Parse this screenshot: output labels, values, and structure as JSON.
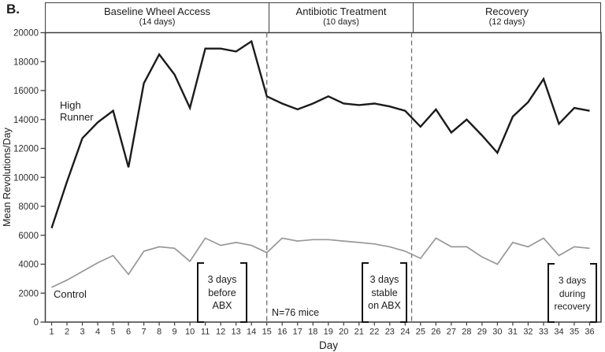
{
  "panel_label": "B.",
  "phases": [
    {
      "title": "Baseline Wheel Access",
      "subtitle": "(14 days)"
    },
    {
      "title": "Antibiotic Treatment",
      "subtitle": "(10 days)"
    },
    {
      "title": "Recovery",
      "subtitle": "(12 days)"
    }
  ],
  "series_labels": {
    "high_runner_line1": "High",
    "high_runner_line2": "Runner",
    "control": "Control"
  },
  "annotations": {
    "n_mice": "N=76 mice",
    "before_abx": [
      "3 days",
      "before",
      "ABX"
    ],
    "stable_abx": [
      "3 days",
      "stable",
      "on ABX"
    ],
    "during_recovery": [
      "3 days",
      "during",
      "recovery"
    ]
  },
  "colors": {
    "high_runner": "#1b1b1b",
    "control": "#989898",
    "frame": "#3e3e3e",
    "dashed": "#6e6e6e",
    "tick_text": "#2e2e2e",
    "text": "#1c1c1c"
  },
  "chart_data": {
    "type": "line",
    "title": "",
    "xlabel": "Day",
    "ylabel": "Mean Revolutions/Day",
    "x": [
      1,
      2,
      3,
      4,
      5,
      6,
      7,
      8,
      9,
      10,
      11,
      12,
      13,
      14,
      15,
      16,
      17,
      18,
      19,
      20,
      21,
      22,
      23,
      24,
      25,
      26,
      27,
      28,
      29,
      30,
      31,
      32,
      33,
      34,
      35,
      36
    ],
    "series": [
      {
        "name": "High Runner",
        "values": [
          6500,
          9700,
          12700,
          13800,
          14600,
          10700,
          16500,
          18500,
          17100,
          14800,
          18900,
          18900,
          18700,
          19400,
          15600,
          15100,
          14700,
          15100,
          15600,
          15100,
          15000,
          15100,
          14900,
          14600,
          13500,
          14700,
          13100,
          14000,
          12900,
          11700,
          14200,
          15200,
          16800,
          13700,
          14800,
          14600
        ]
      },
      {
        "name": "Control",
        "values": [
          2400,
          2900,
          3500,
          4100,
          4600,
          3300,
          4900,
          5200,
          5100,
          4200,
          5800,
          5300,
          5500,
          5300,
          4800,
          5800,
          5600,
          5700,
          5700,
          5600,
          5500,
          5400,
          5200,
          4900,
          4400,
          5800,
          5200,
          5200,
          4500,
          4000,
          5500,
          5200,
          5800,
          4600,
          5200,
          5100
        ]
      }
    ],
    "ylim": [
      0,
      20000
    ],
    "yticks": [
      0,
      2000,
      4000,
      6000,
      8000,
      10000,
      12000,
      14000,
      16000,
      18000,
      20000
    ],
    "xticks": [
      1,
      2,
      3,
      4,
      5,
      6,
      7,
      8,
      9,
      10,
      11,
      12,
      13,
      14,
      15,
      16,
      17,
      18,
      19,
      20,
      21,
      22,
      23,
      24,
      25,
      26,
      27,
      28,
      29,
      30,
      31,
      32,
      33,
      34,
      35,
      36
    ],
    "phase_dividers_x": [
      15,
      24.42
    ],
    "grid": false,
    "legend_position": "inline-labels"
  }
}
